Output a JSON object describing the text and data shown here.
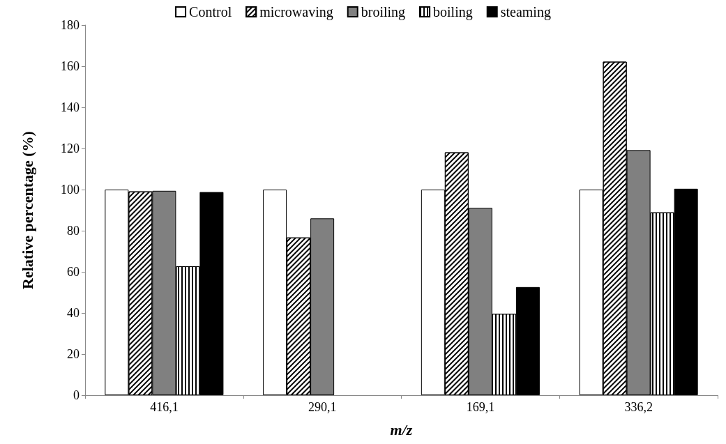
{
  "chart_data": {
    "type": "bar",
    "xlabel": "m/z",
    "ylabel": "Relative percentage (%)",
    "categories": [
      "416,1",
      "290,1",
      "169,1",
      "336,2"
    ],
    "series": [
      {
        "name": "Control",
        "color": "#ffffff",
        "values": [
          100,
          100,
          100,
          100
        ]
      },
      {
        "name": "microwaving",
        "color": "#ffffff",
        "values": [
          99.1,
          76.7,
          118.1,
          162.2
        ]
      },
      {
        "name": "broiling",
        "color": "#808080",
        "values": [
          99.4,
          86.0,
          91.1,
          119.2
        ]
      },
      {
        "name": "boiling",
        "color": "#ffffff",
        "values": [
          62.7,
          null,
          39.6,
          88.9
        ]
      },
      {
        "name": "steaming",
        "color": "#000000",
        "values": [
          98.8,
          null,
          52.6,
          100.4
        ]
      }
    ],
    "ylim": [
      0,
      180
    ],
    "yticks": [
      0,
      20,
      40,
      60,
      80,
      100,
      120,
      140,
      160,
      180
    ],
    "grid": false,
    "legend": "top"
  }
}
